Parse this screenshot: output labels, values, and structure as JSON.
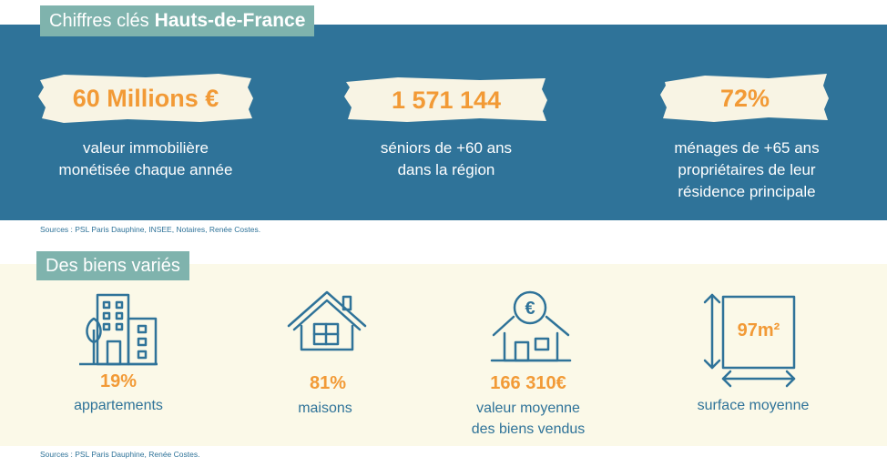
{
  "top": {
    "title_light": "Chiffres clés",
    "title_bold": "Hauts-de-France",
    "stats": [
      {
        "value": "60 Millions €",
        "desc_lines": [
          "valeur immobilière",
          "monétisée chaque année"
        ]
      },
      {
        "value": "1 571 144",
        "desc_lines": [
          "séniors de +60 ans",
          "dans la région"
        ]
      },
      {
        "value": "72%",
        "desc_lines": [
          "ménages de +65 ans",
          "propriétaires de leur",
          "résidence principale"
        ]
      }
    ],
    "sources": "Sources : PSL Paris Dauphine, INSEE, Notaires, Renée Costes."
  },
  "bottom": {
    "title": "Des biens variés",
    "items": [
      {
        "icon": "apartment-building-icon",
        "value": "19%",
        "label_lines": [
          "appartements"
        ]
      },
      {
        "icon": "house-icon",
        "value": "81%",
        "label_lines": [
          "maisons"
        ]
      },
      {
        "icon": "house-euro-icon",
        "value": "166 310€",
        "label_lines": [
          "valeur moyenne",
          "des biens vendus"
        ]
      },
      {
        "icon": "surface-square-icon",
        "value": "97m²",
        "label_lines": [
          "surface moyenne"
        ]
      }
    ],
    "icon_symbol": "€",
    "sources": "Sources : PSL Paris Dauphine, Renée Costes."
  },
  "colors": {
    "blue": "#2f7399",
    "teal": "#7fb3ad",
    "orange": "#f29a36",
    "cream": "#fbf9e8"
  }
}
